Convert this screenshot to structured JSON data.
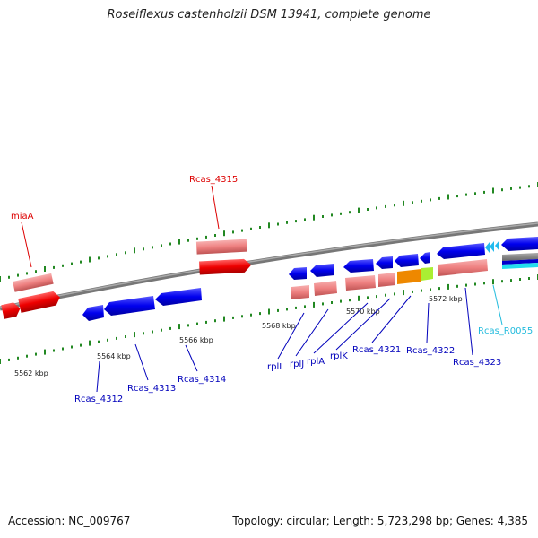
{
  "title": "Roseiflexus castenholzii DSM 13941, complete genome",
  "footer": {
    "accession": "Accession: NC_009767",
    "topology": "Topology: circular; Length: 5,723,298 bp; Genes: 4,385"
  },
  "scale_labels": [
    "5562 kbp",
    "5564 kbp",
    "5566 kbp",
    "5568 kbp",
    "5570 kbp",
    "5572 kbp"
  ],
  "gene_labels": [
    {
      "text": "miaA",
      "color": "#dd0000"
    },
    {
      "text": "Rcas_4315",
      "color": "#dd0000"
    },
    {
      "text": "Rcas_4312",
      "color": "#0000bb"
    },
    {
      "text": "Rcas_4313",
      "color": "#0000bb"
    },
    {
      "text": "Rcas_4314",
      "color": "#0000bb"
    },
    {
      "text": "rplL",
      "color": "#0000bb"
    },
    {
      "text": "rplJ",
      "color": "#0000bb"
    },
    {
      "text": "rplA",
      "color": "#0000bb"
    },
    {
      "text": "rplK",
      "color": "#0000bb"
    },
    {
      "text": "Rcas_4321",
      "color": "#0000bb"
    },
    {
      "text": "Rcas_4322",
      "color": "#0000bb"
    },
    {
      "text": "Rcas_4323",
      "color": "#0000bb"
    },
    {
      "text": "Rcas_R0055",
      "color": "#22bbdd"
    }
  ],
  "colors": {
    "forward_gene": "#ee0000",
    "forward_gene_light": "#f08080",
    "reverse_gene": "#0000dd",
    "reverse_gene_light": "#ee8888",
    "orange_gene": "#ee8800",
    "green_gene": "#aaee33",
    "rna_gene": "#22ccdd",
    "backbone": "#888888",
    "tick": "#228822"
  }
}
